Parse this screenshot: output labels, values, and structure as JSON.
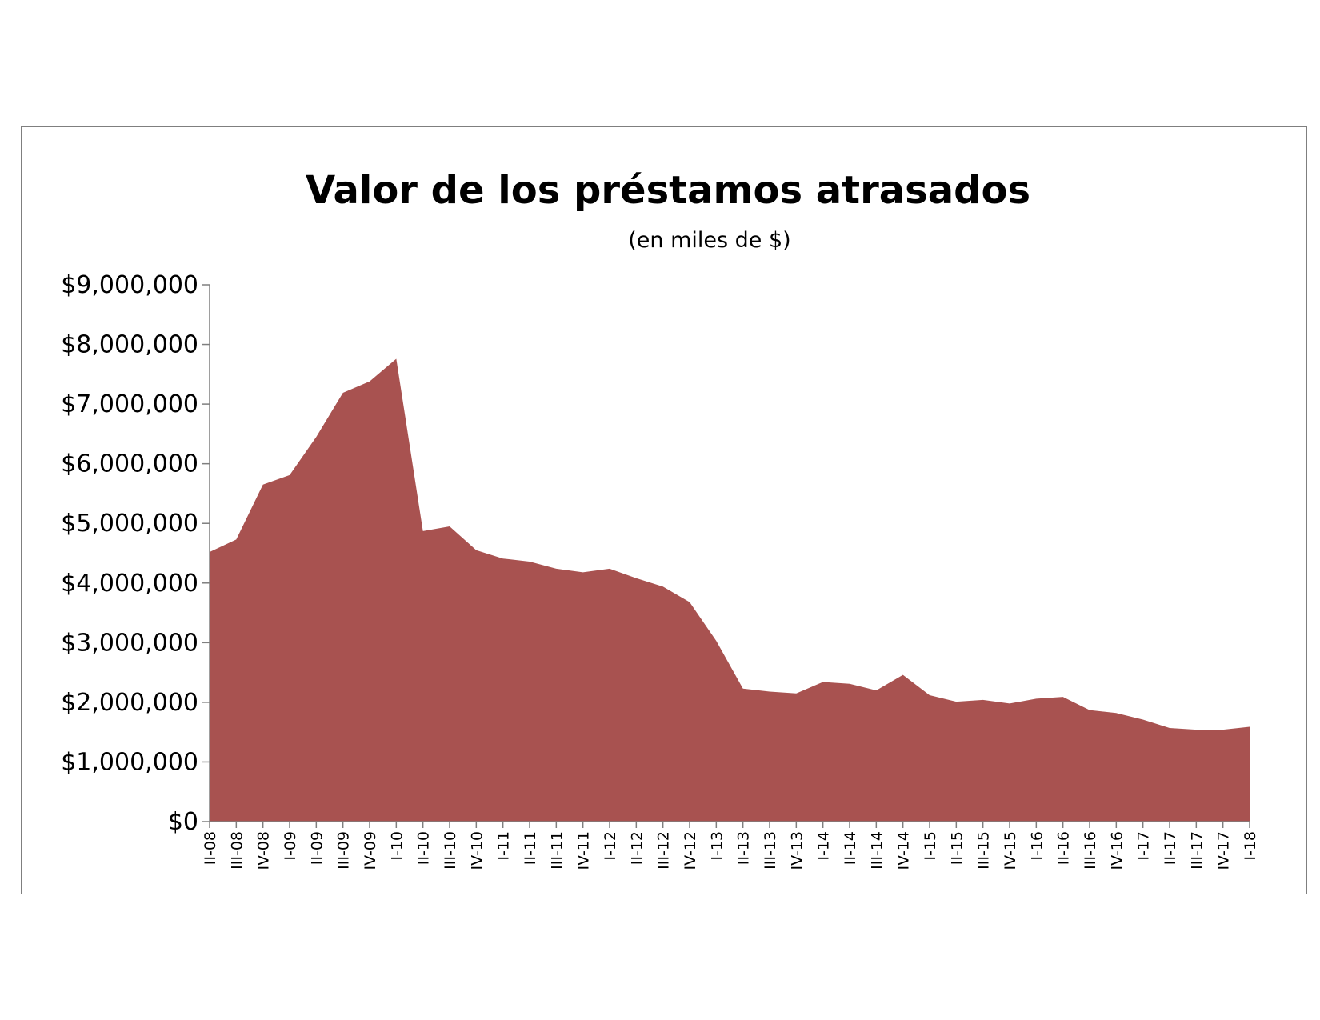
{
  "chart_data": {
    "type": "area",
    "title": "Valor de los préstamos atrasados",
    "subtitle": "(en miles de $)",
    "xlabel": "",
    "ylabel": "",
    "ylim": [
      0,
      9000000
    ],
    "yticks": [
      0,
      1000000,
      2000000,
      3000000,
      4000000,
      5000000,
      6000000,
      7000000,
      8000000,
      9000000
    ],
    "ytick_labels": [
      "$0",
      "$1,000,000",
      "$2,000,000",
      "$3,000,000",
      "$4,000,000",
      "$5,000,000",
      "$6,000,000",
      "$7,000,000",
      "$8,000,000",
      "$9,000,000"
    ],
    "grid": false,
    "legend": "none",
    "fill_color": "#a85250",
    "categories": [
      "II-08",
      "III-08",
      "IV-08",
      "I-09",
      "II-09",
      "III-09",
      "IV-09",
      "I-10",
      "II-10",
      "III-10",
      "IV-10",
      "I-11",
      "II-11",
      "III-11",
      "IV-11",
      "I-12",
      "II-12",
      "III-12",
      "IV-12",
      "I-13",
      "II-13",
      "III-13",
      "IV-13",
      "I-14",
      "II-14",
      "III-14",
      "IV-14",
      "I-15",
      "II-15",
      "III-15",
      "IV-15",
      "I-16",
      "II-16",
      "III-16",
      "IV-16",
      "I-17",
      "II-17",
      "III-17",
      "IV-17",
      "I-18"
    ],
    "values": [
      4520000,
      4730000,
      5650000,
      5810000,
      6450000,
      7190000,
      7380000,
      7760000,
      4870000,
      4950000,
      4550000,
      4410000,
      4360000,
      4240000,
      4180000,
      4240000,
      4080000,
      3940000,
      3680000,
      3030000,
      2230000,
      2180000,
      2150000,
      2340000,
      2310000,
      2200000,
      2460000,
      2120000,
      2010000,
      2040000,
      1980000,
      2060000,
      2090000,
      1870000,
      1820000,
      1710000,
      1570000,
      1540000,
      1540000,
      1590000
    ]
  }
}
